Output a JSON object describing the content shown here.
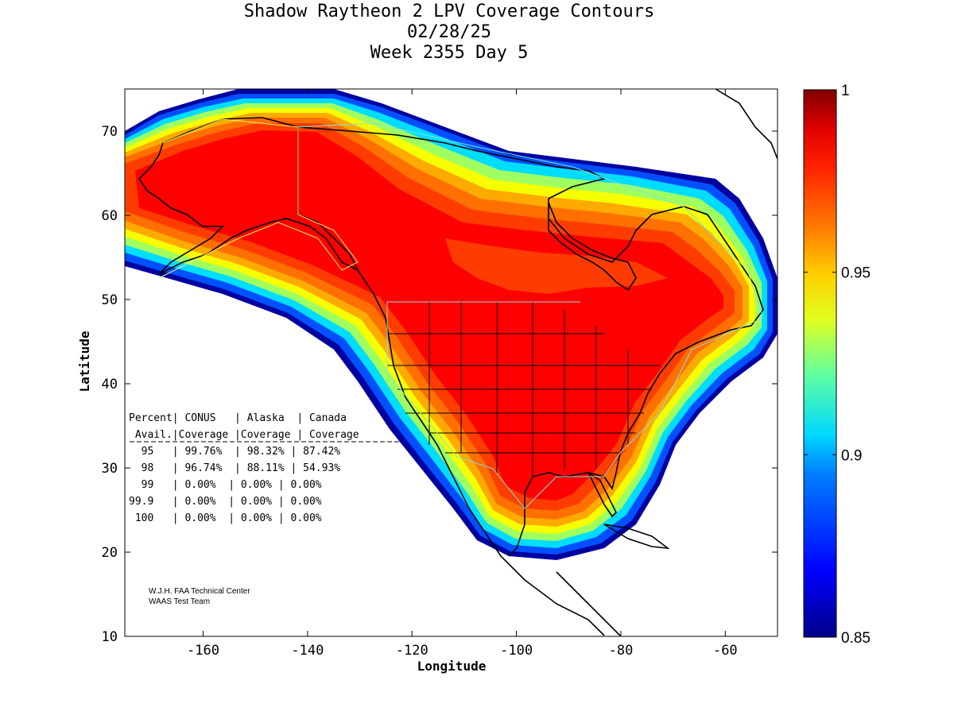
{
  "title": {
    "line1": "Shadow Raytheon 2 LPV Coverage Contours",
    "line2": "02/28/25",
    "line3": "Week 2355 Day 5"
  },
  "axes": {
    "xlabel": "Longitude",
    "ylabel": "Latitude",
    "xlim": [
      -175,
      -50
    ],
    "ylim": [
      10,
      75
    ],
    "xticks": [
      -160,
      -140,
      -120,
      -100,
      -80,
      -60
    ],
    "yticks": [
      10,
      20,
      30,
      40,
      50,
      60,
      70
    ],
    "xtick_labels": [
      "-160",
      "-140",
      "-120",
      "-100",
      "-80",
      "-60"
    ],
    "ytick_labels": [
      "10",
      "20",
      "30",
      "40",
      "50",
      "60",
      "70"
    ]
  },
  "colorbar": {
    "min": 0.85,
    "max": 1,
    "ticks": [
      0.85,
      0.9,
      0.95,
      1
    ],
    "tick_labels": [
      "0.85",
      "0.9",
      "0.95",
      "1"
    ]
  },
  "table": {
    "header1": "Percent| CONUS   | Alaska  | Canada",
    "header2": " Avail.|Coverage |Coverage | Coverage",
    "divider": "------------------------------------------",
    "rows": [
      "  95   | 99.76%  | 98.32% | 87.42%",
      "  98   | 96.74%  | 88.11% | 54.93%",
      "  99   | 0.00%  | 0.00% | 0.00%",
      "99.9   | 0.00%  | 0.00% | 0.00%",
      " 100   | 0.00%  | 0.00% | 0.00%"
    ]
  },
  "credits": {
    "line1": "W.J.H. FAA Technical Center",
    "line2": "WAAS Test Team"
  },
  "colors": {
    "red_core": "#ff0000",
    "orange_red": "#ff3c00",
    "orange": "#ff7000",
    "amber": "#ffaa00",
    "yellow": "#f5ff00",
    "green": "#a0ff60",
    "cyan": "#00ddff",
    "blue": "#0050ff",
    "navy": "#0000a0"
  },
  "chart_data": {
    "type": "heatmap",
    "title": "Shadow Raytheon 2 LPV Coverage Contours",
    "xlabel": "Longitude",
    "ylabel": "Latitude",
    "xlim": [
      -175,
      -50
    ],
    "ylim": [
      10,
      75
    ],
    "colorbar_range": [
      0.85,
      1
    ],
    "coverage_table": [
      {
        "percent": "95",
        "conus": "99.76%",
        "alaska": "98.32%",
        "canada": "87.42%"
      },
      {
        "percent": "98",
        "conus": "96.74%",
        "alaska": "88.11%",
        "canada": "54.93%"
      },
      {
        "percent": "99",
        "conus": "0.00%",
        "alaska": "0.00%",
        "canada": "0.00%"
      },
      {
        "percent": "99.9",
        "conus": "0.00%",
        "alaska": "0.00%",
        "canada": "0.00%"
      },
      {
        "percent": "100",
        "conus": "0.00%",
        "alaska": "0.00%",
        "canada": "0.00%"
      }
    ]
  }
}
